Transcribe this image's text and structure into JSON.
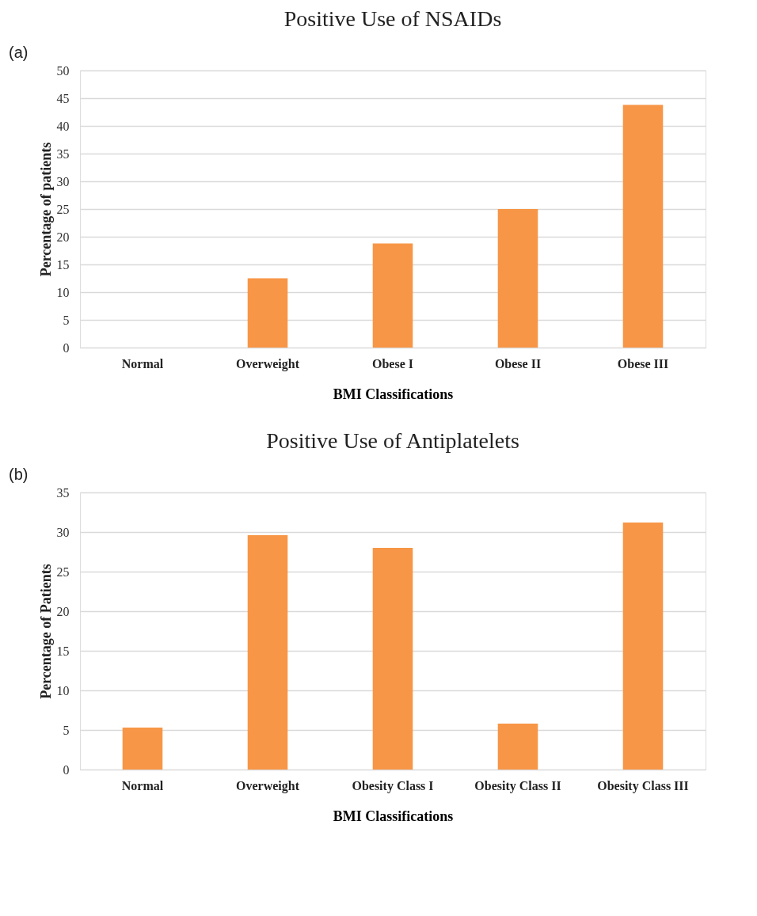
{
  "chart_data": [
    {
      "type": "bar",
      "title": "Positive Use of NSAIDs",
      "xlabel": "BMI Classifications",
      "ylabel": "Percentage of patients",
      "categories": [
        "Normal",
        "Overweight",
        "Obese I",
        "Obese II",
        "Obese III"
      ],
      "values": [
        0,
        12.5,
        18.8,
        25,
        43.8
      ],
      "color": "#f79646",
      "ylim": [
        0,
        50
      ],
      "yticks": [
        0,
        5,
        10,
        15,
        20,
        25,
        30,
        35,
        40,
        45,
        50
      ],
      "grid": "y",
      "annotations": [
        "(a)"
      ]
    },
    {
      "type": "bar",
      "title": "Positive Use of Antiplatelets",
      "xlabel": "BMI Classifications",
      "ylabel": "Percentage of Patients",
      "categories": [
        "Normal",
        "Overweight",
        "Obesity Class  I",
        "Obesity Class  II",
        "Obesity Class  III"
      ],
      "values": [
        5.3,
        29.6,
        28.0,
        5.8,
        31.2
      ],
      "color": "#f79646",
      "ylim": [
        0,
        35
      ],
      "yticks": [
        0,
        5,
        10,
        15,
        20,
        25,
        30,
        35
      ],
      "grid": "y",
      "annotations": [
        "(b)"
      ]
    }
  ]
}
